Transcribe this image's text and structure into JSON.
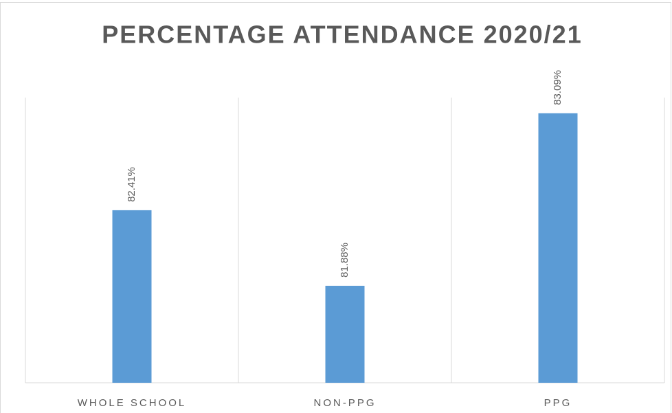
{
  "chart_data": {
    "type": "bar",
    "title": "PERCENTAGE ATTENDANCE 2020/21",
    "categories": [
      "WHOLE SCHOOL",
      "NON-PPG",
      "PPG"
    ],
    "values": [
      82.41,
      81.88,
      83.09
    ],
    "value_labels": [
      "82.41%",
      "81.88%",
      "83.09%"
    ],
    "color": "#5b9bd5",
    "ylim": [
      81.2,
      83.2
    ]
  }
}
